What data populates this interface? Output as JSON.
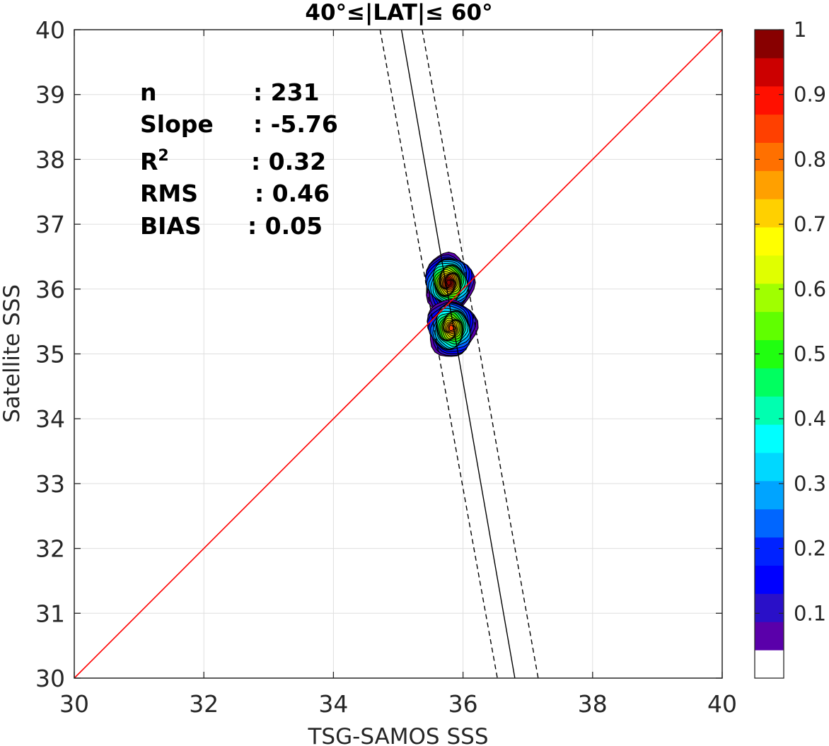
{
  "chart_data": {
    "type": "contour",
    "title": "40°≤|LAT|≤ 60°",
    "xlabel": "TSG-SAMOS SSS",
    "ylabel": "Satellite SSS",
    "xlim": [
      30,
      40
    ],
    "ylim": [
      30,
      40
    ],
    "xticks": [
      "30",
      "32",
      "34",
      "36",
      "38",
      "40"
    ],
    "yticks": [
      "30",
      "31",
      "32",
      "33",
      "34",
      "35",
      "36",
      "37",
      "38",
      "39",
      "40"
    ],
    "grid": true,
    "stats": [
      {
        "name": "n",
        "sep": ": ",
        "value": "231"
      },
      {
        "name": "Slope",
        "sep": ": ",
        "value": "-5.76"
      },
      {
        "name": "R",
        "sup": "2",
        "sep": ": ",
        "value": "0.32"
      },
      {
        "name": "RMS",
        "sep": ": ",
        "value": "0.46"
      },
      {
        "name": "BIAS",
        "sep": ": ",
        "value": "0.05"
      }
    ],
    "one_to_one_line": {
      "x": [
        30,
        40
      ],
      "y": [
        30,
        40
      ],
      "color": "#ff0000"
    },
    "fit_line": {
      "x": [
        35.05,
        36.8
      ],
      "y": [
        40,
        30
      ],
      "color": "#000000"
    },
    "fit_bounds": [
      {
        "x": [
          34.72,
          36.53
        ],
        "y": [
          40,
          30
        ]
      },
      {
        "x": [
          35.37,
          37.16
        ],
        "y": [
          40,
          30
        ]
      }
    ],
    "density_peaks": [
      {
        "x": 35.78,
        "y": 36.1,
        "peak": 1.0
      },
      {
        "x": 35.82,
        "y": 35.4,
        "peak": 0.85
      }
    ],
    "colorbar": {
      "ticks": [
        "0.1",
        "0.2",
        "0.3",
        "0.4",
        "0.5",
        "0.6",
        "0.7",
        "0.8",
        "0.9",
        "1"
      ],
      "tick_values": [
        0.1,
        0.2,
        0.3,
        0.4,
        0.5,
        0.6,
        0.7,
        0.8,
        0.9,
        1.0
      ],
      "range": [
        0,
        1
      ],
      "colors": [
        "#ffffff",
        "#5a00aa",
        "#2a10c8",
        "#0000ff",
        "#0022ff",
        "#0066ff",
        "#00a4ff",
        "#00d8ff",
        "#00ffff",
        "#00ffb0",
        "#00ff60",
        "#20ff10",
        "#60ff00",
        "#a0ff00",
        "#e0ff00",
        "#ffff00",
        "#ffd000",
        "#ffa000",
        "#ff7000",
        "#ff4000",
        "#ff1000",
        "#cc0000",
        "#880000"
      ]
    }
  }
}
